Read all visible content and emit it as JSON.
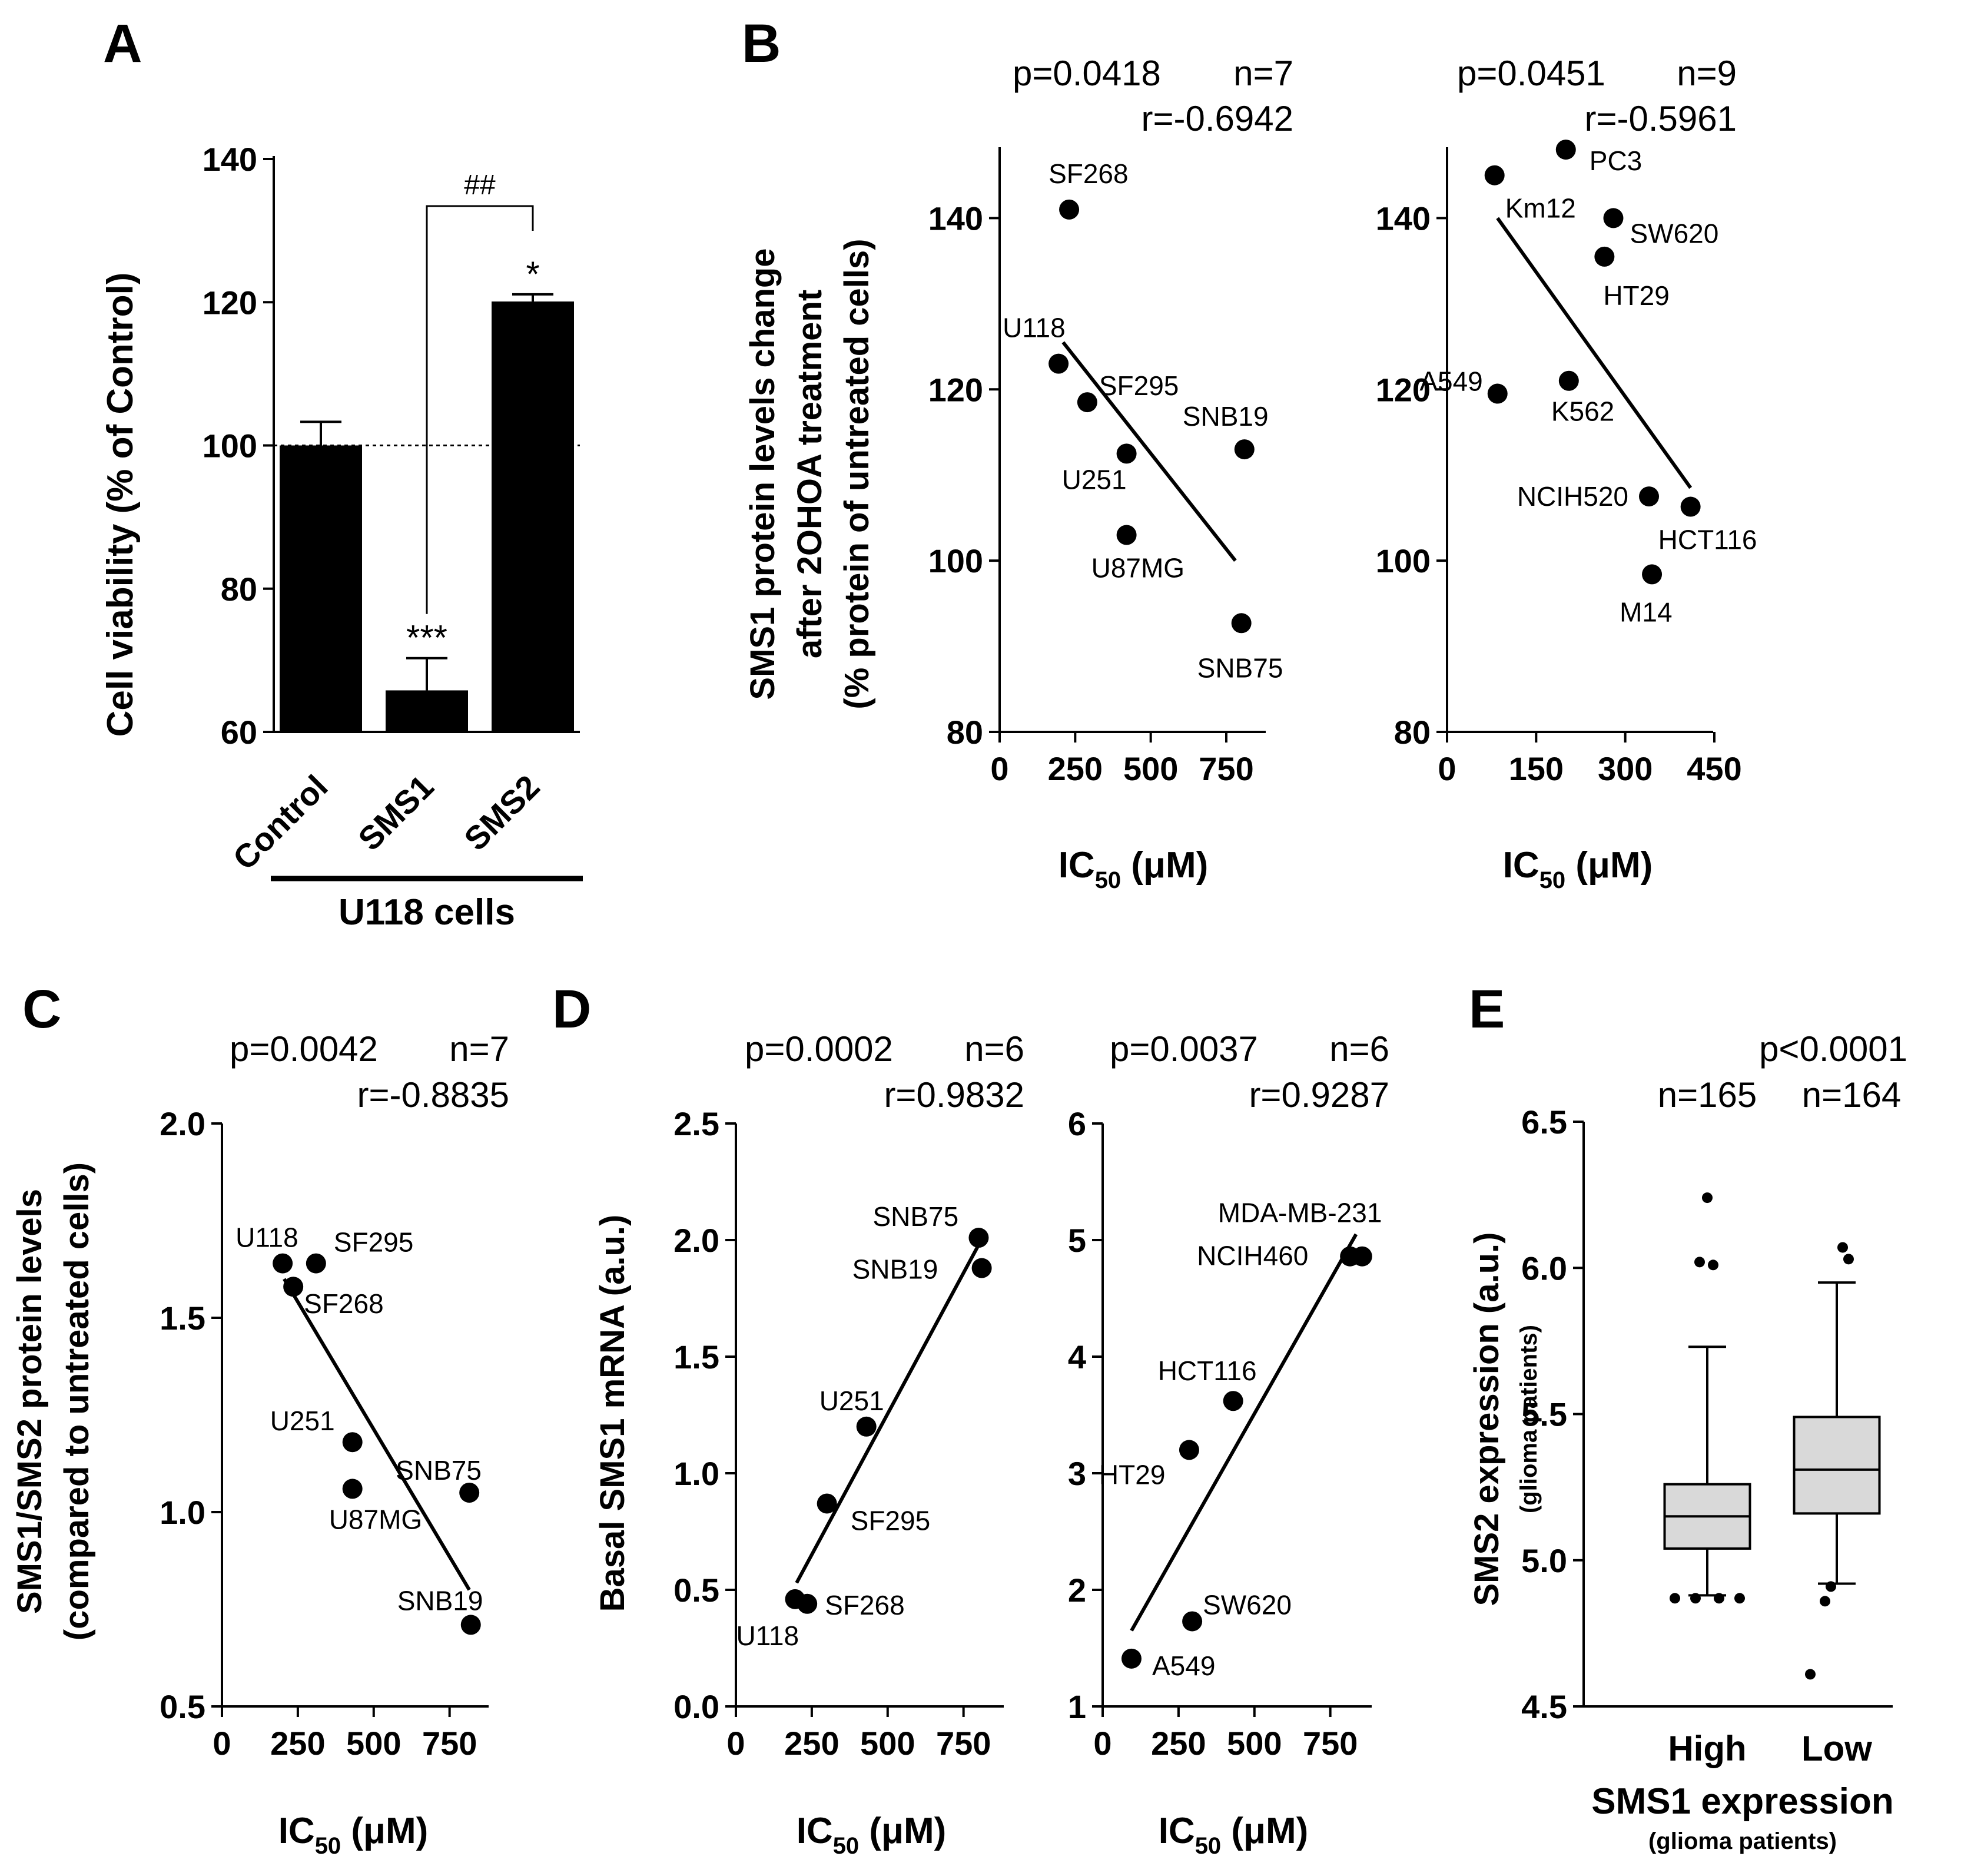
{
  "figure": {
    "panel_letters": [
      "A",
      "B",
      "C",
      "D",
      "E"
    ],
    "colors": {
      "ink": "#000000",
      "box_fill": "#d9d9d9",
      "background": "#ffffff"
    }
  },
  "chart_data": [
    {
      "id": "A",
      "type": "bar",
      "categories": [
        "Control",
        "SMS1",
        "SMS2"
      ],
      "values": [
        100,
        65.8,
        120.1
      ],
      "errors": [
        3.3,
        4.5,
        1.0
      ],
      "significance": [
        "",
        "***",
        "*"
      ],
      "bracket": {
        "from": "SMS1",
        "to": "SMS2",
        "label": "##"
      },
      "reference_line": 100,
      "ylabel": "Cell viability (% of Control)",
      "ylim": [
        60,
        140
      ],
      "yticks": [
        "60",
        "80",
        "100",
        "120",
        "140"
      ],
      "group_label": "U118 cells"
    },
    {
      "id": "B-left",
      "type": "scatter",
      "stats": {
        "p": "p=0.0418",
        "n": "n=7",
        "r": "r=-0.6942"
      },
      "ylabel_lines": [
        "SMS1 protein levels change",
        "after 2OHOA treatment",
        "(% protein of untreated cells)"
      ],
      "xlabel_main": "IC",
      "xlabel_sub": "50",
      "xlabel_tail": " (μM)",
      "xlim": [
        0,
        900
      ],
      "ylim": [
        80,
        150
      ],
      "xticks": [
        "0",
        "250",
        "500",
        "750"
      ],
      "yticks": [
        "80",
        "100",
        "120",
        "140"
      ],
      "points": [
        {
          "label": "SF268",
          "x": 230,
          "y": 141
        },
        {
          "label": "U118",
          "x": 195,
          "y": 123
        },
        {
          "label": "SF295",
          "x": 290,
          "y": 118.5
        },
        {
          "label": "U251",
          "x": 420,
          "y": 112.5
        },
        {
          "label": "U87MG",
          "x": 420,
          "y": 103
        },
        {
          "label": "SNB19",
          "x": 810,
          "y": 113
        },
        {
          "label": "SNB75",
          "x": 800,
          "y": 92.7
        }
      ],
      "fit": {
        "x": [
          210,
          780
        ],
        "y": [
          125.5,
          100
        ]
      }
    },
    {
      "id": "B-right",
      "type": "scatter",
      "stats": {
        "p": "p=0.0451",
        "n": "n=9",
        "r": "r=-0.5961"
      },
      "xlabel_main": "IC",
      "xlabel_sub": "50",
      "xlabel_tail": " (μM)",
      "xlim": [
        0,
        450
      ],
      "ylim": [
        80,
        150
      ],
      "xticks": [
        "0",
        "150",
        "300",
        "450"
      ],
      "yticks": [
        "80",
        "100",
        "120",
        "140"
      ],
      "points": [
        {
          "label": "Km12",
          "x": 80,
          "y": 145
        },
        {
          "label": "PC3",
          "x": 200,
          "y": 148
        },
        {
          "label": "SW620",
          "x": 280,
          "y": 140
        },
        {
          "label": "HT29",
          "x": 265,
          "y": 135.5
        },
        {
          "label": "A549",
          "x": 85,
          "y": 119.5
        },
        {
          "label": "K562",
          "x": 205,
          "y": 121
        },
        {
          "label": "NCIH520",
          "x": 340,
          "y": 107.5
        },
        {
          "label": "HCT116",
          "x": 410,
          "y": 106.3
        },
        {
          "label": "M14",
          "x": 345,
          "y": 98.4
        }
      ],
      "fit": {
        "x": [
          85,
          410
        ],
        "y": [
          140,
          108.5
        ]
      }
    },
    {
      "id": "C",
      "type": "scatter",
      "stats": {
        "p": "p=0.0042",
        "n": "n=7",
        "r": "r=-0.8835"
      },
      "ylabel_lines": [
        "SMS1/SMS2 protein levels",
        "(compared to untreated cells)"
      ],
      "xlabel_main": "IC",
      "xlabel_sub": "50",
      "xlabel_tail": " (μM)",
      "xlim": [
        0,
        900
      ],
      "ylim": [
        0.5,
        2.0
      ],
      "xticks": [
        "0",
        "250",
        "500",
        "750"
      ],
      "yticks": [
        "0.5",
        "1.0",
        "1.5",
        "2.0"
      ],
      "points": [
        {
          "label": "U118",
          "x": 200,
          "y": 1.64
        },
        {
          "label": "SF295",
          "x": 310,
          "y": 1.64
        },
        {
          "label": "SF268",
          "x": 235,
          "y": 1.58
        },
        {
          "label": "U251",
          "x": 430,
          "y": 1.18
        },
        {
          "label": "U87MG",
          "x": 430,
          "y": 1.06
        },
        {
          "label": "SNB75",
          "x": 815,
          "y": 1.05
        },
        {
          "label": "SNB19",
          "x": 820,
          "y": 0.71
        }
      ],
      "fit": {
        "x": [
          205,
          815
        ],
        "y": [
          1.6,
          0.8
        ]
      }
    },
    {
      "id": "D-left",
      "type": "scatter",
      "stats": {
        "p": "p=0.0002",
        "n": "n=6",
        "r": "r=0.9832"
      },
      "ylabel": "Basal SMS1 mRNA (a.u.)",
      "xlabel_main": "IC",
      "xlabel_sub": "50",
      "xlabel_tail": " (μM)",
      "xlim": [
        0,
        900
      ],
      "ylim": [
        0.0,
        2.5
      ],
      "xticks": [
        "0",
        "250",
        "500",
        "750"
      ],
      "yticks": [
        "0.0",
        "0.5",
        "1.0",
        "1.5",
        "2.0",
        "2.5"
      ],
      "points": [
        {
          "label": "SNB75",
          "x": 800,
          "y": 2.01
        },
        {
          "label": "SNB19",
          "x": 810,
          "y": 1.88
        },
        {
          "label": "U251",
          "x": 430,
          "y": 1.2
        },
        {
          "label": "SF295",
          "x": 300,
          "y": 0.87
        },
        {
          "label": "U118",
          "x": 195,
          "y": 0.46
        },
        {
          "label": "SF268",
          "x": 235,
          "y": 0.44
        }
      ],
      "fit": {
        "x": [
          200,
          800
        ],
        "y": [
          0.53,
          1.98
        ]
      }
    },
    {
      "id": "D-right",
      "type": "scatter",
      "stats": {
        "p": "p=0.0037",
        "n": "n=6",
        "r": "r=0.9287"
      },
      "xlabel_main": "IC",
      "xlabel_sub": "50",
      "xlabel_tail": " (μM)",
      "xlim": [
        0,
        900
      ],
      "ylim": [
        1,
        6
      ],
      "xticks": [
        "0",
        "250",
        "500",
        "750"
      ],
      "yticks": [
        "1",
        "2",
        "3",
        "4",
        "5",
        "6"
      ],
      "points": [
        {
          "label": "MDA-MB-231",
          "x": 855,
          "y": 4.86
        },
        {
          "label": "NCIH460",
          "x": 815,
          "y": 4.86
        },
        {
          "label": "HCT116",
          "x": 430,
          "y": 3.62
        },
        {
          "label": "HT29",
          "x": 285,
          "y": 3.2
        },
        {
          "label": "SW620",
          "x": 295,
          "y": 1.73
        },
        {
          "label": "A549",
          "x": 95,
          "y": 1.41
        }
      ],
      "fit": {
        "x": [
          95,
          835
        ],
        "y": [
          1.65,
          5.05
        ]
      }
    },
    {
      "id": "E",
      "type": "box",
      "stats": {
        "p": "p<0.0001",
        "n": [
          "n=165",
          "n=164"
        ]
      },
      "ylabel_main": "SMS2 expression (a.u.)",
      "ylabel_sub": "(glioma patients)",
      "xlabel_main": "SMS1 expression",
      "xlabel_sub": "(glioma patients)",
      "ylim": [
        4.5,
        6.5
      ],
      "yticks": [
        "4.5",
        "5.0",
        "5.5",
        "6.0",
        "6.5"
      ],
      "groups": [
        {
          "name": "High",
          "q1": 5.04,
          "median": 5.15,
          "q3": 5.26,
          "whisker_low": 4.88,
          "whisker_high": 5.73,
          "outliers": [
            6.24,
            6.02,
            6.01,
            4.87,
            4.87,
            4.87,
            4.87
          ]
        },
        {
          "name": "Low",
          "q1": 5.16,
          "median": 5.31,
          "q3": 5.49,
          "whisker_low": 4.92,
          "whisker_high": 5.95,
          "outliers": [
            6.07,
            6.03,
            4.91,
            4.86,
            4.61
          ]
        }
      ]
    }
  ]
}
